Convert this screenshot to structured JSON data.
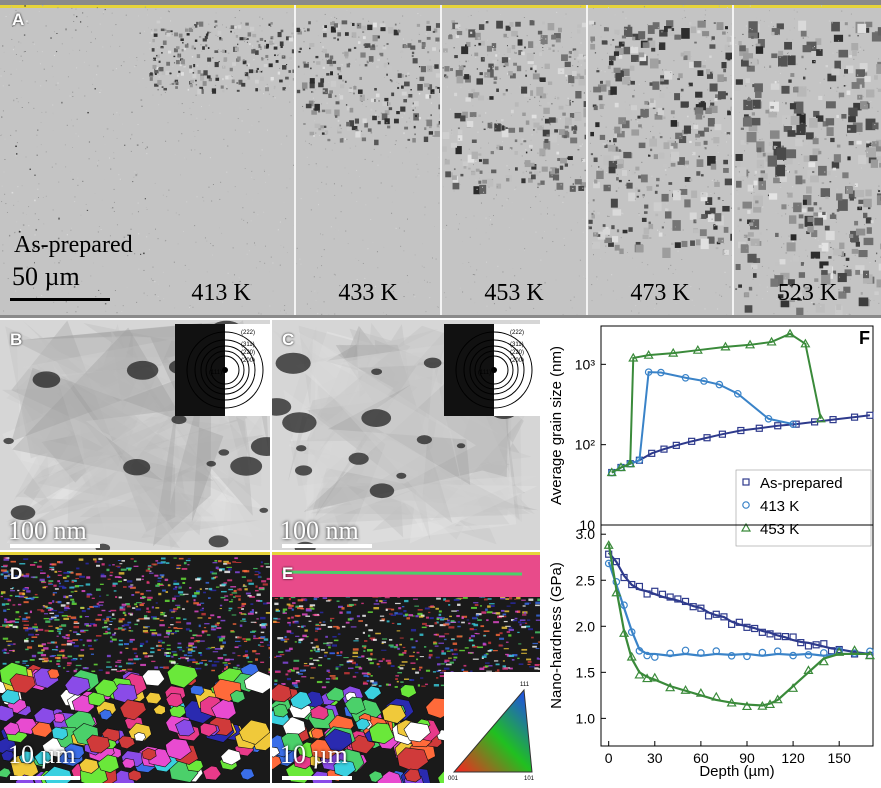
{
  "panel_labels": {
    "a": "A",
    "b": "B",
    "c": "C",
    "d": "D",
    "e": "E",
    "f": "F"
  },
  "panel_a": {
    "as_prepared": "As-prepared",
    "scalebar": "50 µm",
    "temps": [
      "413 K",
      "433 K",
      "453 K",
      "473 K",
      "523 K"
    ]
  },
  "panel_b": {
    "scalebar": "100 nm"
  },
  "panel_c": {
    "scalebar": "100 nm"
  },
  "panel_d": {
    "scalebar": "10 µm"
  },
  "panel_e": {
    "scalebar": "10 µm"
  },
  "diffraction_rings": [
    "(222)",
    "(311)",
    "(220)",
    "(200)",
    "(111)"
  ],
  "ipf_corners": [
    "111",
    "001",
    "101"
  ],
  "chart_data": [
    {
      "type": "line",
      "ylabel": "Average grain size (nm)",
      "yscale": "log",
      "ylim": [
        10,
        3000
      ],
      "yticks": [
        "10",
        "10²",
        "10³"
      ],
      "xlim": [
        -5,
        172
      ],
      "series": [
        {
          "name": "As-prepared",
          "color": "#2e3a8c",
          "marker": "square",
          "x": [
            2,
            8,
            14,
            20,
            28,
            36,
            44,
            54,
            64,
            74,
            86,
            98,
            110,
            122,
            134,
            146,
            160,
            170
          ],
          "y": [
            45,
            52,
            58,
            64,
            78,
            88,
            98,
            110,
            122,
            135,
            150,
            160,
            172,
            180,
            192,
            205,
            220,
            232
          ]
        },
        {
          "name": "413 K",
          "color": "#3a83c8",
          "marker": "circle",
          "x": [
            2,
            8,
            14,
            20,
            26,
            34,
            50,
            62,
            72,
            84,
            104,
            120
          ],
          "y": [
            45,
            52,
            58,
            64,
            800,
            790,
            680,
            620,
            560,
            430,
            210,
            180
          ]
        },
        {
          "name": "453 K",
          "color": "#3a8a3a",
          "marker": "triangle",
          "x": [
            2,
            8,
            14,
            16,
            26,
            42,
            58,
            76,
            92,
            106,
            118,
            128,
            138
          ],
          "y": [
            45,
            52,
            58,
            1200,
            1300,
            1380,
            1500,
            1650,
            1750,
            1900,
            2400,
            1800,
            210
          ]
        }
      ],
      "legend": "inside, bottom-right"
    },
    {
      "type": "scatter",
      "ylabel": "Nano-hardness (GPa)",
      "xlabel": "Depth (µm)",
      "ylim": [
        0.7,
        3.1
      ],
      "yticks": [
        "1.0",
        "1.5",
        "2.0",
        "2.5",
        "3.0"
      ],
      "xlim": [
        -5,
        172
      ],
      "xticks": [
        "0",
        "30",
        "60",
        "90",
        "120",
        "150"
      ],
      "series": [
        {
          "name": "As-prepared",
          "x": [
            0,
            5,
            10,
            15,
            20,
            25,
            30,
            35,
            40,
            45,
            50,
            55,
            60,
            65,
            70,
            75,
            80,
            85,
            90,
            95,
            100,
            105,
            110,
            115,
            120,
            125,
            130,
            135,
            140,
            145,
            150,
            160,
            170
          ],
          "y": [
            2.8,
            2.7,
            2.55,
            2.45,
            2.4,
            2.38,
            2.35,
            2.32,
            2.3,
            2.28,
            2.25,
            2.22,
            2.2,
            2.15,
            2.12,
            2.1,
            2.05,
            2.02,
            2.0,
            1.98,
            1.95,
            1.93,
            1.9,
            1.88,
            1.85,
            1.83,
            1.82,
            1.8,
            1.78,
            1.76,
            1.75,
            1.72,
            1.7
          ]
        },
        {
          "name": "413 K",
          "x": [
            0,
            5,
            10,
            15,
            20,
            25,
            30,
            40,
            50,
            60,
            70,
            80,
            90,
            100,
            110,
            120,
            130,
            140,
            150,
            160,
            170
          ],
          "y": [
            2.7,
            2.45,
            2.2,
            1.95,
            1.75,
            1.7,
            1.7,
            1.68,
            1.7,
            1.68,
            1.7,
            1.69,
            1.7,
            1.68,
            1.7,
            1.69,
            1.7,
            1.68,
            1.7,
            1.7,
            1.7
          ]
        },
        {
          "name": "453 K",
          "x": [
            0,
            5,
            10,
            15,
            20,
            25,
            30,
            40,
            50,
            60,
            70,
            80,
            90,
            100,
            105,
            110,
            120,
            130,
            140,
            150,
            160,
            170
          ],
          "y": [
            2.9,
            2.4,
            1.95,
            1.65,
            1.5,
            1.45,
            1.42,
            1.35,
            1.3,
            1.25,
            1.2,
            1.17,
            1.15,
            1.14,
            1.16,
            1.2,
            1.35,
            1.5,
            1.65,
            1.7,
            1.7,
            1.7
          ]
        }
      ]
    }
  ]
}
